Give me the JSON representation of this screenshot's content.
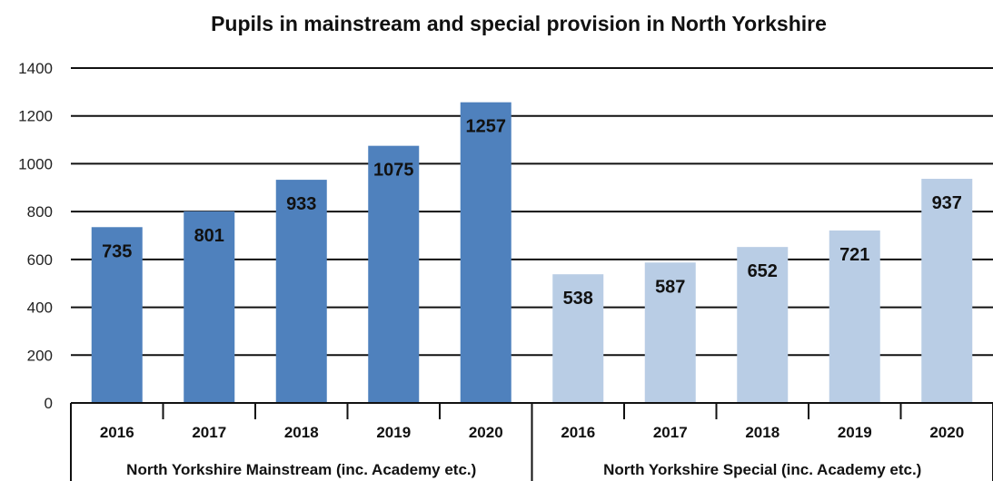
{
  "chart_data": {
    "type": "bar",
    "title": "Pupils in mainstream and special provision in North Yorkshire",
    "xlabel": "",
    "ylabel": "",
    "ylim": [
      0,
      1400
    ],
    "yticks": [
      0,
      200,
      400,
      600,
      800,
      1000,
      1200,
      1400
    ],
    "grid": true,
    "legend": "none",
    "categories": [
      "2016",
      "2017",
      "2018",
      "2019",
      "2020",
      "2016",
      "2017",
      "2018",
      "2019",
      "2020"
    ],
    "groups": [
      {
        "name": "North Yorkshire Mainstream (inc. Academy etc.)",
        "color": "#4F81BD",
        "categories": [
          "2016",
          "2017",
          "2018",
          "2019",
          "2020"
        ],
        "values": [
          735,
          801,
          933,
          1075,
          1257
        ]
      },
      {
        "name": "North Yorkshire Special (inc. Academy etc.)",
        "color": "#B9CDE5",
        "categories": [
          "2016",
          "2017",
          "2018",
          "2019",
          "2020"
        ],
        "values": [
          538,
          587,
          652,
          721,
          937
        ]
      }
    ]
  }
}
